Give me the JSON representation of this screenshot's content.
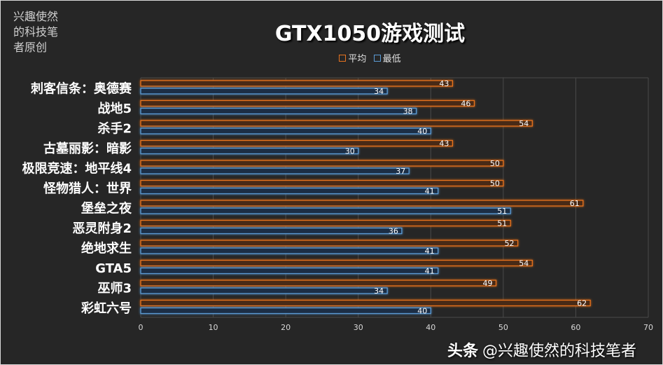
{
  "corner_note": "兴趣使然的科技笔者原创",
  "watermark": {
    "brand": "头条",
    "handle": "@兴趣使然的科技笔者"
  },
  "colors": {
    "avg": "#e8731f",
    "min": "#5b9bd5",
    "background": "#262626"
  },
  "chart_data": {
    "type": "bar",
    "orientation": "horizontal",
    "title": "GTX1050游戏测试",
    "legend_position": "top",
    "grid": "vertical",
    "categories": [
      "刺客信条：奥德赛",
      "战地5",
      "杀手2",
      "古墓丽影：暗影",
      "极限竞速：地平线4",
      "怪物猎人：世界",
      "堡垒之夜",
      "恶灵附身2",
      "绝地求生",
      "GTA5",
      "巫师3",
      "彩虹六号"
    ],
    "series": [
      {
        "name": "平均",
        "values": [
          43,
          46,
          54,
          43,
          50,
          50,
          61,
          51,
          52,
          54,
          49,
          62
        ]
      },
      {
        "name": "最低",
        "values": [
          34,
          38,
          40,
          30,
          37,
          41,
          51,
          36,
          41,
          41,
          34,
          40
        ]
      }
    ],
    "xlim": [
      0,
      70
    ],
    "xticks": [
      0,
      10,
      20,
      30,
      40,
      50,
      60,
      70
    ]
  }
}
